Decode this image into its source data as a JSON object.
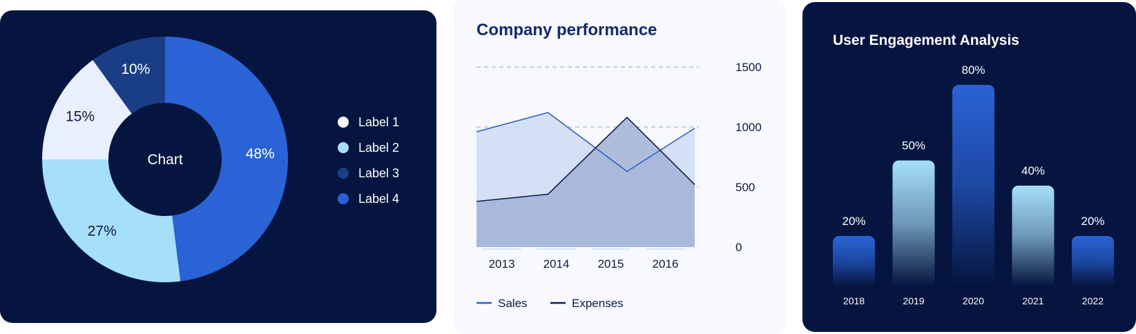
{
  "chart_data": [
    {
      "type": "pie",
      "center_label": "Chart",
      "slices": [
        {
          "label": "Label 4",
          "value": 48,
          "text": "48%",
          "color": "#2a63d6"
        },
        {
          "label": "Label 2",
          "value": 27,
          "text": "27%",
          "color": "#a6dff8"
        },
        {
          "label": "Label 1",
          "value": 15,
          "text": "15%",
          "color": "#e9effc"
        },
        {
          "label": "Label 3",
          "value": 10,
          "text": "10%",
          "color": "#1a3e86"
        }
      ],
      "legend": [
        {
          "label": "Label 1",
          "color": "#ffffff"
        },
        {
          "label": "Label 2",
          "color": "#a6dff8"
        },
        {
          "label": "Label 3",
          "color": "#1a3e86"
        },
        {
          "label": "Label 4",
          "color": "#2a63d6"
        }
      ],
      "legend_position": "right"
    },
    {
      "type": "area",
      "title": "Company performance",
      "x": [
        "2013",
        "2014",
        "2015",
        "2016"
      ],
      "x_positions": [
        2012.6,
        2013.55,
        2014.6,
        2015.5
      ],
      "ylim": [
        0,
        1500
      ],
      "yticks": [
        0,
        500,
        1000,
        1500
      ],
      "ytick_labels": [
        "0",
        "500",
        "1000",
        "1500"
      ],
      "y_axis_side": "right",
      "grid": true,
      "series": [
        {
          "name": "Sales",
          "color": "#2f5fc4",
          "fill": "#cfdcf5",
          "points": [
            [
              2012.6,
              960
            ],
            [
              2013.55,
              1120
            ],
            [
              2014.6,
              630
            ],
            [
              2015.5,
              990
            ]
          ]
        },
        {
          "name": "Expenses",
          "color": "#0c1d4e",
          "fill": "#a2b2d6",
          "points": [
            [
              2012.6,
              380
            ],
            [
              2013.55,
              440
            ],
            [
              2014.6,
              1080
            ],
            [
              2015.5,
              520
            ]
          ]
        }
      ],
      "legend_position": "bottom-left"
    },
    {
      "type": "bar",
      "title": "User Engagement Analysis",
      "categories": [
        "2018",
        "2019",
        "2020",
        "2021",
        "2022"
      ],
      "values": [
        20,
        50,
        80,
        40,
        20
      ],
      "value_labels": [
        "20%",
        "50%",
        "80%",
        "40%",
        "20%"
      ],
      "colors": [
        "#2a63d6",
        "#a6dff8",
        "#2a63d6",
        "#a6dff8",
        "#2a63d6"
      ],
      "ylim": [
        0,
        100
      ]
    }
  ]
}
